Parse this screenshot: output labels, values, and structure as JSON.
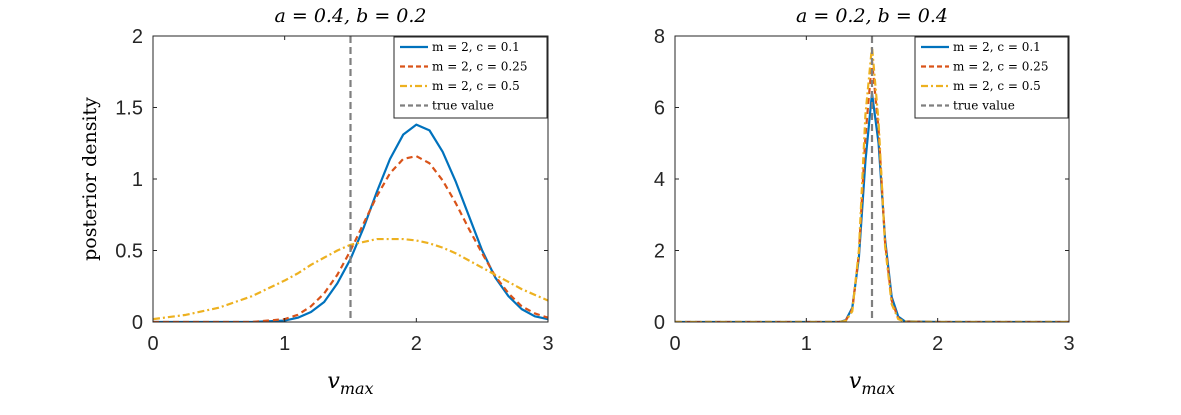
{
  "chart_data": [
    {
      "type": "line",
      "title": "a = 0.4, b = 0.2",
      "xlabel": "v_max",
      "ylabel": "posterior density",
      "xlim": [
        0,
        3
      ],
      "ylim": [
        0,
        2
      ],
      "xticks": [
        0,
        1,
        2,
        3
      ],
      "yticks": [
        0,
        0.5,
        1,
        1.5,
        2
      ],
      "xtick_labels": [
        "0",
        "1",
        "2",
        "3"
      ],
      "ytick_labels": [
        "0",
        "0.5",
        "1",
        "1.5",
        "2"
      ],
      "legend_position": "top-right",
      "grid": false,
      "x": [
        0,
        0.25,
        0.5,
        0.75,
        1.0,
        1.1,
        1.2,
        1.3,
        1.4,
        1.5,
        1.6,
        1.7,
        1.8,
        1.9,
        2.0,
        2.1,
        2.2,
        2.3,
        2.4,
        2.5,
        2.6,
        2.7,
        2.8,
        2.9,
        3.0
      ],
      "series": [
        {
          "name": "m = 2, c = 0.1",
          "color": "#0072BD",
          "dash": "solid",
          "values": [
            0,
            0,
            0,
            0,
            0.01,
            0.03,
            0.07,
            0.14,
            0.27,
            0.44,
            0.66,
            0.91,
            1.14,
            1.31,
            1.38,
            1.34,
            1.19,
            0.98,
            0.74,
            0.5,
            0.31,
            0.18,
            0.09,
            0.04,
            0.02
          ]
        },
        {
          "name": "m = 2, c = 0.25",
          "color": "#D95319",
          "dash": "dashed",
          "values": [
            0,
            0,
            0,
            0,
            0.02,
            0.05,
            0.11,
            0.2,
            0.33,
            0.5,
            0.69,
            0.88,
            1.04,
            1.14,
            1.16,
            1.11,
            0.99,
            0.83,
            0.65,
            0.48,
            0.32,
            0.2,
            0.11,
            0.06,
            0.03
          ]
        },
        {
          "name": "m = 2, c = 0.5",
          "color": "#EDB120",
          "dash": "dashdot",
          "values": [
            0.02,
            0.05,
            0.1,
            0.18,
            0.29,
            0.34,
            0.4,
            0.45,
            0.5,
            0.54,
            0.56,
            0.58,
            0.58,
            0.58,
            0.57,
            0.55,
            0.52,
            0.48,
            0.43,
            0.38,
            0.33,
            0.28,
            0.23,
            0.19,
            0.15
          ]
        }
      ],
      "true_value": {
        "name": "true value",
        "x": 1.5,
        "color": "#7F7F7F",
        "dash": "dashed"
      }
    },
    {
      "type": "line",
      "title": "a = 0.2, b = 0.4",
      "xlabel": "v_max",
      "ylabel": "",
      "xlim": [
        0,
        3
      ],
      "ylim": [
        0,
        8
      ],
      "xticks": [
        0,
        1,
        2,
        3
      ],
      "yticks": [
        0,
        2,
        4,
        6,
        8
      ],
      "xtick_labels": [
        "0",
        "1",
        "2",
        "3"
      ],
      "ytick_labels": [
        "0",
        "2",
        "4",
        "6",
        "8"
      ],
      "legend_position": "top-right",
      "grid": false,
      "x": [
        0,
        1.0,
        1.25,
        1.3,
        1.35,
        1.4,
        1.45,
        1.5,
        1.55,
        1.6,
        1.65,
        1.7,
        1.75,
        2.0,
        3.0
      ],
      "series": [
        {
          "name": "m = 2, c = 0.1",
          "color": "#0072BD",
          "dash": "solid",
          "values": [
            0,
            0,
            0,
            0.05,
            0.4,
            1.8,
            4.5,
            6.4,
            5.0,
            2.3,
            0.7,
            0.15,
            0.02,
            0,
            0
          ]
        },
        {
          "name": "m = 2, c = 0.25",
          "color": "#D95319",
          "dash": "dashed",
          "values": [
            0,
            0,
            0,
            0.04,
            0.35,
            1.9,
            5.2,
            7.3,
            5.4,
            2.2,
            0.6,
            0.1,
            0.01,
            0,
            0
          ]
        },
        {
          "name": "m = 2, c = 0.5",
          "color": "#EDB120",
          "dash": "dashdot",
          "values": [
            0,
            0,
            0,
            0.03,
            0.3,
            2.0,
            5.8,
            7.7,
            5.6,
            2.1,
            0.5,
            0.08,
            0.01,
            0,
            0
          ]
        }
      ],
      "true_value": {
        "name": "true value",
        "x": 1.5,
        "color": "#7F7F7F",
        "dash": "dashed"
      }
    }
  ]
}
